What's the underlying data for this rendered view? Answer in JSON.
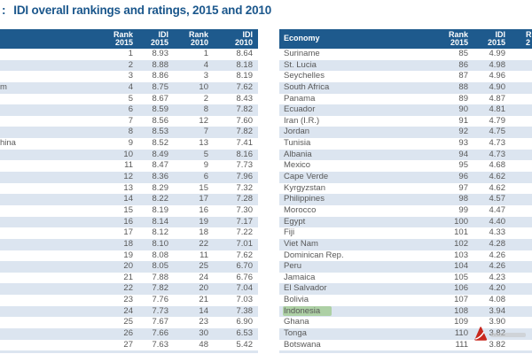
{
  "page": {
    "title_prefix": ":",
    "title": "IDI overall rankings and ratings, 2015 and 2010"
  },
  "colors": {
    "header_bg": "#1E5A8D",
    "row_alt_bg": "#DCE5F0",
    "title_color": "#1B578C",
    "body_text": "#595959",
    "highlight_green": "#94C47D",
    "watermark_red": "#C8281E"
  },
  "icons": {
    "watermark": "pdf-app-logo-icon"
  },
  "left_table": {
    "columns": [
      "Rank\n2015",
      "IDI\n2015",
      "Rank\n2010",
      "IDI\n2010"
    ],
    "rows": [
      {
        "economy_fragment": "",
        "rank_2015": "1",
        "idi_2015": "8.93",
        "rank_2010": "1",
        "idi_2010": "8.64"
      },
      {
        "economy_fragment": "",
        "rank_2015": "2",
        "idi_2015": "8.88",
        "rank_2010": "4",
        "idi_2010": "8.18"
      },
      {
        "economy_fragment": "",
        "rank_2015": "3",
        "idi_2015": "8.86",
        "rank_2010": "3",
        "idi_2010": "8.19"
      },
      {
        "economy_fragment": "m",
        "rank_2015": "4",
        "idi_2015": "8.75",
        "rank_2010": "10",
        "idi_2010": "7.62"
      },
      {
        "economy_fragment": "",
        "rank_2015": "5",
        "idi_2015": "8.67",
        "rank_2010": "2",
        "idi_2010": "8.43"
      },
      {
        "economy_fragment": "",
        "rank_2015": "6",
        "idi_2015": "8.59",
        "rank_2010": "8",
        "idi_2010": "7.82"
      },
      {
        "economy_fragment": "",
        "rank_2015": "7",
        "idi_2015": "8.56",
        "rank_2010": "12",
        "idi_2010": "7.60"
      },
      {
        "economy_fragment": "",
        "rank_2015": "8",
        "idi_2015": "8.53",
        "rank_2010": "7",
        "idi_2010": "7.82"
      },
      {
        "economy_fragment": "hina",
        "rank_2015": "9",
        "idi_2015": "8.52",
        "rank_2010": "13",
        "idi_2010": "7.41"
      },
      {
        "economy_fragment": "",
        "rank_2015": "10",
        "idi_2015": "8.49",
        "rank_2010": "5",
        "idi_2010": "8.16"
      },
      {
        "economy_fragment": "",
        "rank_2015": "11",
        "idi_2015": "8.47",
        "rank_2010": "9",
        "idi_2010": "7.73"
      },
      {
        "economy_fragment": "",
        "rank_2015": "12",
        "idi_2015": "8.36",
        "rank_2010": "6",
        "idi_2010": "7.96"
      },
      {
        "economy_fragment": "",
        "rank_2015": "13",
        "idi_2015": "8.29",
        "rank_2010": "15",
        "idi_2010": "7.32"
      },
      {
        "economy_fragment": "",
        "rank_2015": "14",
        "idi_2015": "8.22",
        "rank_2010": "17",
        "idi_2010": "7.28"
      },
      {
        "economy_fragment": "",
        "rank_2015": "15",
        "idi_2015": "8.19",
        "rank_2010": "16",
        "idi_2010": "7.30"
      },
      {
        "economy_fragment": "",
        "rank_2015": "16",
        "idi_2015": "8.14",
        "rank_2010": "19",
        "idi_2010": "7.17"
      },
      {
        "economy_fragment": "",
        "rank_2015": "17",
        "idi_2015": "8.12",
        "rank_2010": "18",
        "idi_2010": "7.22"
      },
      {
        "economy_fragment": "",
        "rank_2015": "18",
        "idi_2015": "8.10",
        "rank_2010": "22",
        "idi_2010": "7.01"
      },
      {
        "economy_fragment": "",
        "rank_2015": "19",
        "idi_2015": "8.08",
        "rank_2010": "11",
        "idi_2010": "7.62"
      },
      {
        "economy_fragment": "",
        "rank_2015": "20",
        "idi_2015": "8.05",
        "rank_2010": "25",
        "idi_2010": "6.70"
      },
      {
        "economy_fragment": "",
        "rank_2015": "21",
        "idi_2015": "7.88",
        "rank_2010": "24",
        "idi_2010": "6.76"
      },
      {
        "economy_fragment": "",
        "rank_2015": "22",
        "idi_2015": "7.82",
        "rank_2010": "20",
        "idi_2010": "7.04"
      },
      {
        "economy_fragment": "",
        "rank_2015": "23",
        "idi_2015": "7.76",
        "rank_2010": "21",
        "idi_2010": "7.03"
      },
      {
        "economy_fragment": "",
        "rank_2015": "24",
        "idi_2015": "7.73",
        "rank_2010": "14",
        "idi_2010": "7.38"
      },
      {
        "economy_fragment": "",
        "rank_2015": "25",
        "idi_2015": "7.67",
        "rank_2010": "23",
        "idi_2010": "6.90"
      },
      {
        "economy_fragment": "",
        "rank_2015": "26",
        "idi_2015": "7.66",
        "rank_2010": "30",
        "idi_2010": "6.53"
      },
      {
        "economy_fragment": "",
        "rank_2015": "27",
        "idi_2015": "7.63",
        "rank_2010": "48",
        "idi_2010": "5.42"
      }
    ]
  },
  "right_table": {
    "columns": [
      "Economy",
      "Rank\n2015",
      "IDI\n2015"
    ],
    "partial_next_column": "R\n2",
    "rows": [
      {
        "economy": "Suriname",
        "rank_2015": "85",
        "idi_2015": "4.99",
        "highlighted": false
      },
      {
        "economy": "St. Lucia",
        "rank_2015": "86",
        "idi_2015": "4.98",
        "highlighted": false
      },
      {
        "economy": "Seychelles",
        "rank_2015": "87",
        "idi_2015": "4.96",
        "highlighted": false
      },
      {
        "economy": "South Africa",
        "rank_2015": "88",
        "idi_2015": "4.90",
        "highlighted": false
      },
      {
        "economy": "Panama",
        "rank_2015": "89",
        "idi_2015": "4.87",
        "highlighted": false
      },
      {
        "economy": "Ecuador",
        "rank_2015": "90",
        "idi_2015": "4.81",
        "highlighted": false
      },
      {
        "economy": "Iran (I.R.)",
        "rank_2015": "91",
        "idi_2015": "4.79",
        "highlighted": false
      },
      {
        "economy": "Jordan",
        "rank_2015": "92",
        "idi_2015": "4.75",
        "highlighted": false
      },
      {
        "economy": "Tunisia",
        "rank_2015": "93",
        "idi_2015": "4.73",
        "highlighted": false
      },
      {
        "economy": "Albania",
        "rank_2015": "94",
        "idi_2015": "4.73",
        "highlighted": false
      },
      {
        "economy": "Mexico",
        "rank_2015": "95",
        "idi_2015": "4.68",
        "highlighted": false
      },
      {
        "economy": "Cape Verde",
        "rank_2015": "96",
        "idi_2015": "4.62",
        "highlighted": false
      },
      {
        "economy": "Kyrgyzstan",
        "rank_2015": "97",
        "idi_2015": "4.62",
        "highlighted": false
      },
      {
        "economy": "Philippines",
        "rank_2015": "98",
        "idi_2015": "4.57",
        "highlighted": false
      },
      {
        "economy": "Morocco",
        "rank_2015": "99",
        "idi_2015": "4.47",
        "highlighted": false
      },
      {
        "economy": "Egypt",
        "rank_2015": "100",
        "idi_2015": "4.40",
        "highlighted": false
      },
      {
        "economy": "Fiji",
        "rank_2015": "101",
        "idi_2015": "4.33",
        "highlighted": false
      },
      {
        "economy": "Viet Nam",
        "rank_2015": "102",
        "idi_2015": "4.28",
        "highlighted": false
      },
      {
        "economy": "Dominican Rep.",
        "rank_2015": "103",
        "idi_2015": "4.26",
        "highlighted": false
      },
      {
        "economy": "Peru",
        "rank_2015": "104",
        "idi_2015": "4.26",
        "highlighted": false
      },
      {
        "economy": "Jamaica",
        "rank_2015": "105",
        "idi_2015": "4.23",
        "highlighted": false
      },
      {
        "economy": "El Salvador",
        "rank_2015": "106",
        "idi_2015": "4.20",
        "highlighted": false
      },
      {
        "economy": "Bolivia",
        "rank_2015": "107",
        "idi_2015": "4.08",
        "highlighted": false
      },
      {
        "economy": "Indonesia",
        "rank_2015": "108",
        "idi_2015": "3.94",
        "highlighted": true
      },
      {
        "economy": "Ghana",
        "rank_2015": "109",
        "idi_2015": "3.90",
        "highlighted": false
      },
      {
        "economy": "Tonga",
        "rank_2015": "110",
        "idi_2015": "3.82",
        "highlighted": false
      },
      {
        "economy": "Botswana",
        "rank_2015": "111",
        "idi_2015": "3.82",
        "highlighted": false
      }
    ]
  }
}
